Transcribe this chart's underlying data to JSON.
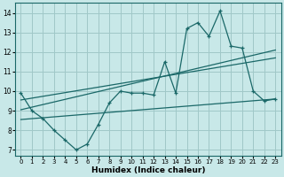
{
  "xlabel": "Humidex (Indice chaleur)",
  "xlim": [
    -0.5,
    23.5
  ],
  "ylim": [
    6.7,
    14.5
  ],
  "xticks": [
    0,
    1,
    2,
    3,
    4,
    5,
    6,
    7,
    8,
    9,
    10,
    11,
    12,
    13,
    14,
    15,
    16,
    17,
    18,
    19,
    20,
    21,
    22,
    23
  ],
  "yticks": [
    7,
    8,
    9,
    10,
    11,
    12,
    13,
    14
  ],
  "bg_color": "#c8e8e8",
  "grid_color": "#a0c8c8",
  "line_color": "#1a6868",
  "main_x": [
    0,
    1,
    2,
    3,
    4,
    5,
    6,
    7,
    8,
    9,
    10,
    11,
    12,
    13,
    14,
    15,
    16,
    17,
    18,
    19,
    20,
    21,
    22,
    23
  ],
  "main_y": [
    9.9,
    9.0,
    8.6,
    8.0,
    7.5,
    7.0,
    7.3,
    8.3,
    9.4,
    10.0,
    9.9,
    9.9,
    9.8,
    11.5,
    9.9,
    13.2,
    13.5,
    12.8,
    14.1,
    12.3,
    12.2,
    10.0,
    9.5,
    9.6
  ],
  "trend1_x": [
    0,
    23
  ],
  "trend1_y": [
    9.05,
    12.1
  ],
  "trend2_x": [
    0,
    23
  ],
  "trend2_y": [
    9.55,
    11.7
  ],
  "trend3_x": [
    0,
    23
  ],
  "trend3_y": [
    8.55,
    9.6
  ]
}
